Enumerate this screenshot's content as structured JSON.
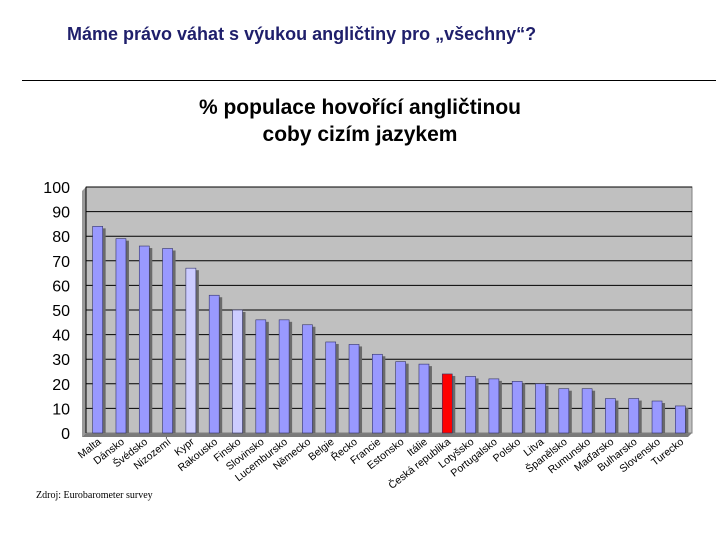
{
  "slide": {
    "title": "Máme právo váhat s výukou angličtiny pro „všechny“?",
    "source": "Zdroj: Eurobarometer survey"
  },
  "chart_data": {
    "type": "bar",
    "title_lines": [
      "% populace hovořící angličtinou",
      "coby cizím jazykem"
    ],
    "xlabel": "",
    "ylabel": "",
    "ylim": [
      0,
      100
    ],
    "yticks": [
      0,
      10,
      20,
      30,
      40,
      50,
      60,
      70,
      80,
      90,
      100
    ],
    "grid": true,
    "legend": "none",
    "categories": [
      "Malta",
      "Dánsko",
      "Švédsko",
      "Nizozemí",
      "Kypr",
      "Rakousko",
      "Finsko",
      "Slovinsko",
      "Lucembursko",
      "Německo",
      "Belgie",
      "Řecko",
      "Francie",
      "Estonsko",
      "Itálie",
      "Česká republika",
      "Lotyšsko",
      "Portugalsko",
      "Polsko",
      "Litva",
      "Španělsko",
      "Rumunsko",
      "Maďarsko",
      "Bulharsko",
      "Slovensko",
      "Turecko"
    ],
    "values": [
      84,
      79,
      76,
      75,
      67,
      56,
      50,
      46,
      46,
      44,
      37,
      36,
      32,
      29,
      28,
      24,
      23,
      22,
      21,
      20,
      18,
      18,
      14,
      14,
      13,
      11
    ],
    "colors": {
      "default": "#9999ff",
      "highlight": "#ff0000",
      "light": "#ccccff",
      "plot_background": "#c0c0c0",
      "grid": "#000000"
    },
    "highlight_categories": [
      "Česká republika"
    ],
    "light_categories": [
      "Kypr",
      "Finsko"
    ]
  }
}
